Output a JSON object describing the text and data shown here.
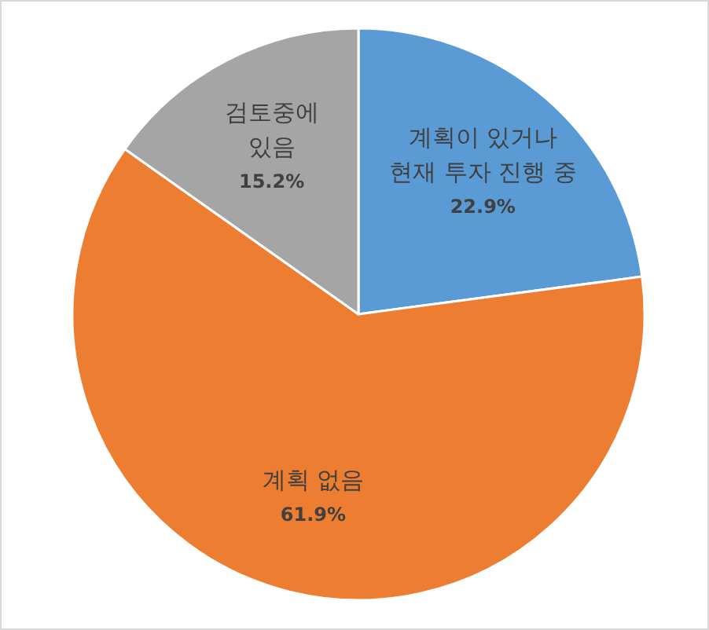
{
  "chart_data": {
    "type": "pie",
    "categories": [
      "계획이 있거나\n현재 투자 진행 중",
      "계획 없음",
      "검토중에\n있음"
    ],
    "values": [
      22.9,
      61.9,
      15.2
    ],
    "value_labels": [
      "22.9%",
      "61.9%",
      "15.2%"
    ],
    "colors": [
      "#5b9bd5",
      "#ed7d31",
      "#a5a5a5"
    ]
  }
}
